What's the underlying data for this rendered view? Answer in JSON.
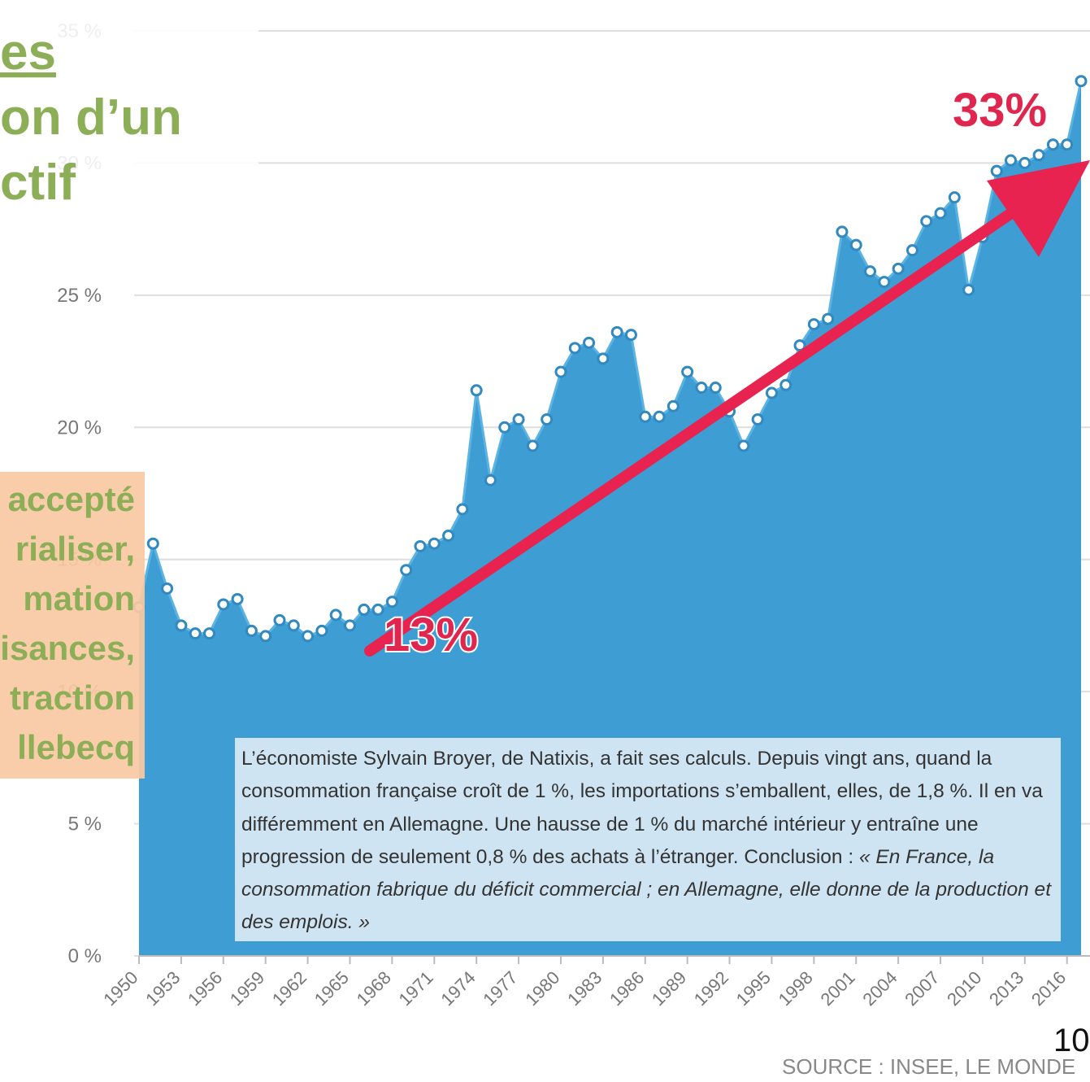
{
  "slide": {
    "title_lines": [
      "es",
      "on d’un",
      "ctif"
    ],
    "box_lines": [
      "accepté",
      "rialiser,",
      "mation",
      "isances,",
      "traction",
      "llebecq"
    ],
    "quote": {
      "text": "L’économiste Sylvain Broyer, de Natixis, a fait ses calculs. Depuis vingt ans, quand la consommation française croît de 1 %, les importations s’emballent, elles, de 1,8 %. Il en va différemment en Allemagne. Une hausse de 1 % du marché intérieur y entraîne une progression de seulement 0,8 % des achats à l’étranger. Conclusion : ",
      "italic": "« En France, la consommation fabrique du déficit commercial ; en Allemagne, elle donne de la production et des emplois. »"
    },
    "page_number": "10"
  },
  "chart_data": {
    "type": "area",
    "source": "SOURCE : INSEE, LE MONDE",
    "annotations": [
      "33%",
      "13%"
    ],
    "color": "#3e9dd3",
    "grid": true,
    "x": [
      1950,
      1951,
      1952,
      1953,
      1954,
      1955,
      1956,
      1957,
      1958,
      1959,
      1960,
      1961,
      1962,
      1963,
      1964,
      1965,
      1966,
      1967,
      1968,
      1969,
      1970,
      1971,
      1972,
      1973,
      1974,
      1975,
      1976,
      1977,
      1978,
      1979,
      1980,
      1981,
      1982,
      1983,
      1984,
      1985,
      1986,
      1987,
      1988,
      1989,
      1990,
      1991,
      1992,
      1993,
      1994,
      1995,
      1996,
      1997,
      1998,
      1999,
      2000,
      2001,
      2002,
      2003,
      2004,
      2005,
      2006,
      2007,
      2008,
      2009,
      2010,
      2011,
      2012,
      2013,
      2014,
      2015,
      2016,
      2017
    ],
    "values": [
      13.2,
      15.6,
      13.9,
      12.5,
      12.2,
      12.2,
      13.3,
      13.5,
      12.3,
      12.1,
      12.7,
      12.5,
      12.1,
      12.3,
      12.9,
      12.5,
      13.1,
      13.1,
      13.4,
      14.6,
      15.5,
      15.6,
      15.9,
      16.9,
      21.4,
      18.0,
      20.0,
      20.3,
      19.3,
      20.3,
      22.1,
      23.0,
      23.2,
      22.6,
      23.6,
      23.5,
      20.4,
      20.4,
      20.8,
      22.1,
      21.5,
      21.5,
      20.6,
      19.3,
      20.3,
      21.3,
      21.6,
      23.1,
      23.9,
      24.1,
      27.4,
      26.9,
      25.9,
      25.5,
      26.0,
      26.7,
      27.8,
      28.1,
      28.7,
      25.2,
      27.2,
      29.7,
      30.1,
      30.0,
      30.3,
      30.7,
      30.7,
      33.1
    ],
    "xlim": [
      1950,
      2017
    ],
    "xticks": [
      1950,
      1953,
      1956,
      1959,
      1962,
      1965,
      1968,
      1971,
      1974,
      1977,
      1980,
      1983,
      1986,
      1989,
      1992,
      1995,
      1998,
      2001,
      2004,
      2007,
      2010,
      2013,
      2016
    ],
    "ylim": [
      0,
      35
    ],
    "yticks": [
      {
        "value": 0,
        "label": "0 %"
      },
      {
        "value": 5,
        "label": "5 %"
      },
      {
        "value": 10,
        "label": "10 %"
      },
      {
        "value": 15,
        "label": "15 %"
      },
      {
        "value": 20,
        "label": "20 %"
      },
      {
        "value": 25,
        "label": "25 %"
      },
      {
        "value": 30,
        "label": "30 %"
      },
      {
        "value": 35,
        "label": "35 %"
      }
    ]
  }
}
